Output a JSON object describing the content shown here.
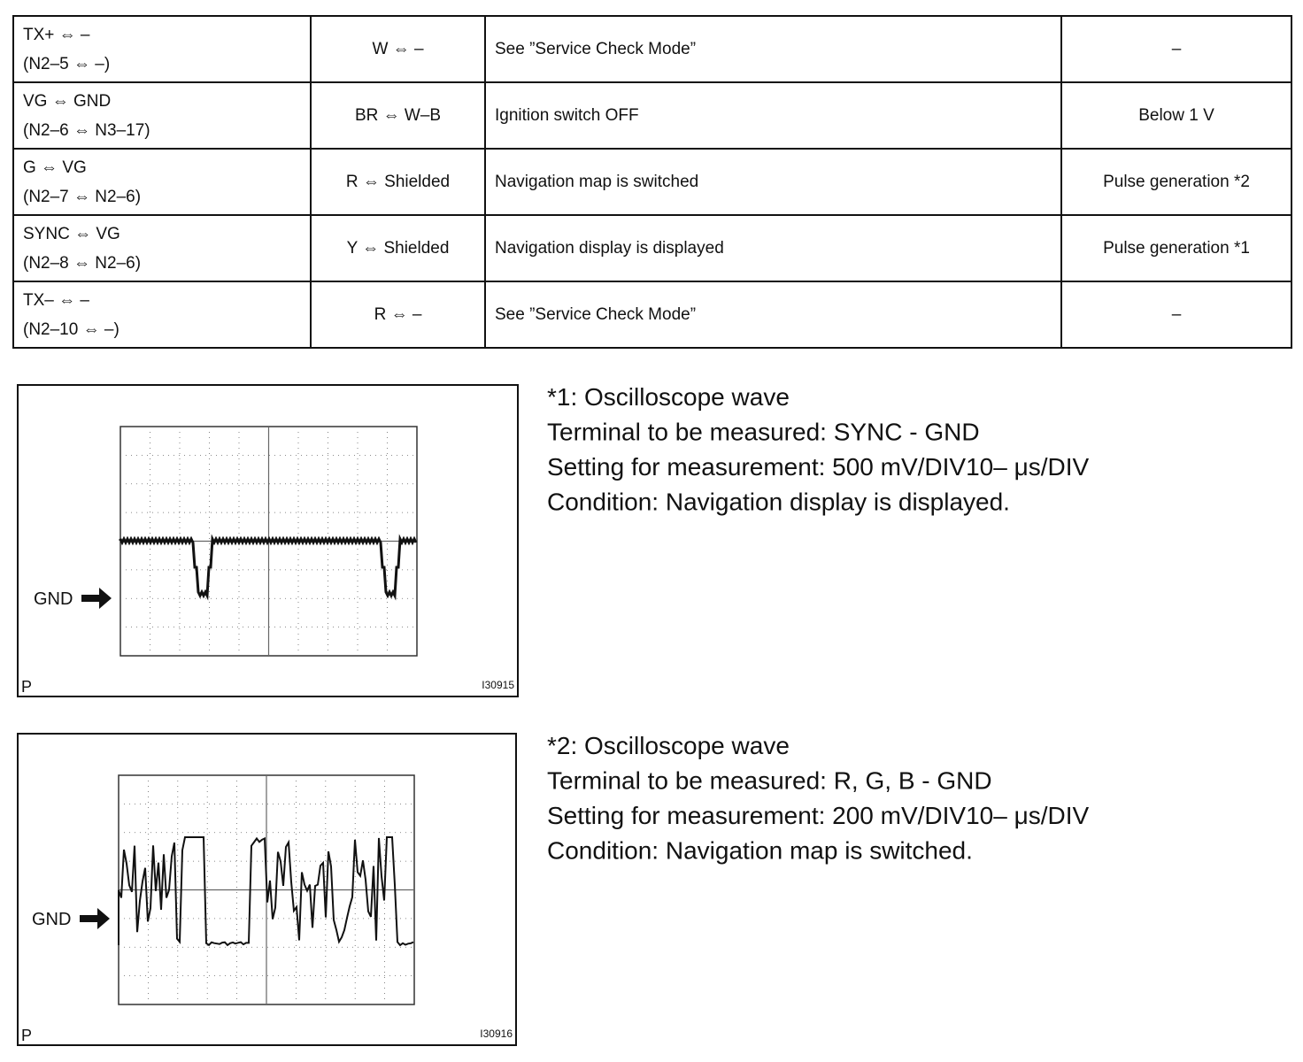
{
  "table": {
    "rows": [
      [
        [
          "TX+ ⇔ –",
          "(N2–5 ⇔ –)"
        ],
        "W ⇔ –",
        "See ”Service Check Mode”",
        "–"
      ],
      [
        [
          "VG ⇔ GND",
          "(N2–6 ⇔ N3–17)"
        ],
        "BR ⇔ W–B",
        "Ignition switch OFF",
        "Below 1 V"
      ],
      [
        [
          "G ⇔ VG",
          "(N2–7 ⇔ N2–6)"
        ],
        "R ⇔ Shielded",
        "Navigation map is switched",
        "Pulse generation *2"
      ],
      [
        [
          "SYNC ⇔ VG",
          "(N2–8 ⇔ N2–6)"
        ],
        "Y ⇔ Shielded",
        "Navigation display is displayed",
        "Pulse generation *1"
      ],
      [
        [
          "TX– ⇔ –",
          "(N2–10 ⇔ –)"
        ],
        "R ⇔ –",
        "See ”Service Check Mode”",
        "–"
      ]
    ]
  },
  "figures": [
    {
      "gnd_label": "GND",
      "corner_label": "P",
      "code": "I30915",
      "lines": [
        "*1: Oscilloscope wave",
        "Terminal to be measured: SYNC - GND",
        "Setting for measurement: 500 mV/DIV10– μs/DIV",
        "Condition: Navigation display is displayed."
      ]
    },
    {
      "gnd_label": "GND",
      "corner_label": "P",
      "code": "I30916",
      "lines": [
        "*2: Oscilloscope wave",
        "Terminal to be measured: R, G, B - GND",
        "Setting for measurement: 200 mV/DIV10– μs/DIV",
        "Condition: Navigation map is switched."
      ]
    }
  ]
}
